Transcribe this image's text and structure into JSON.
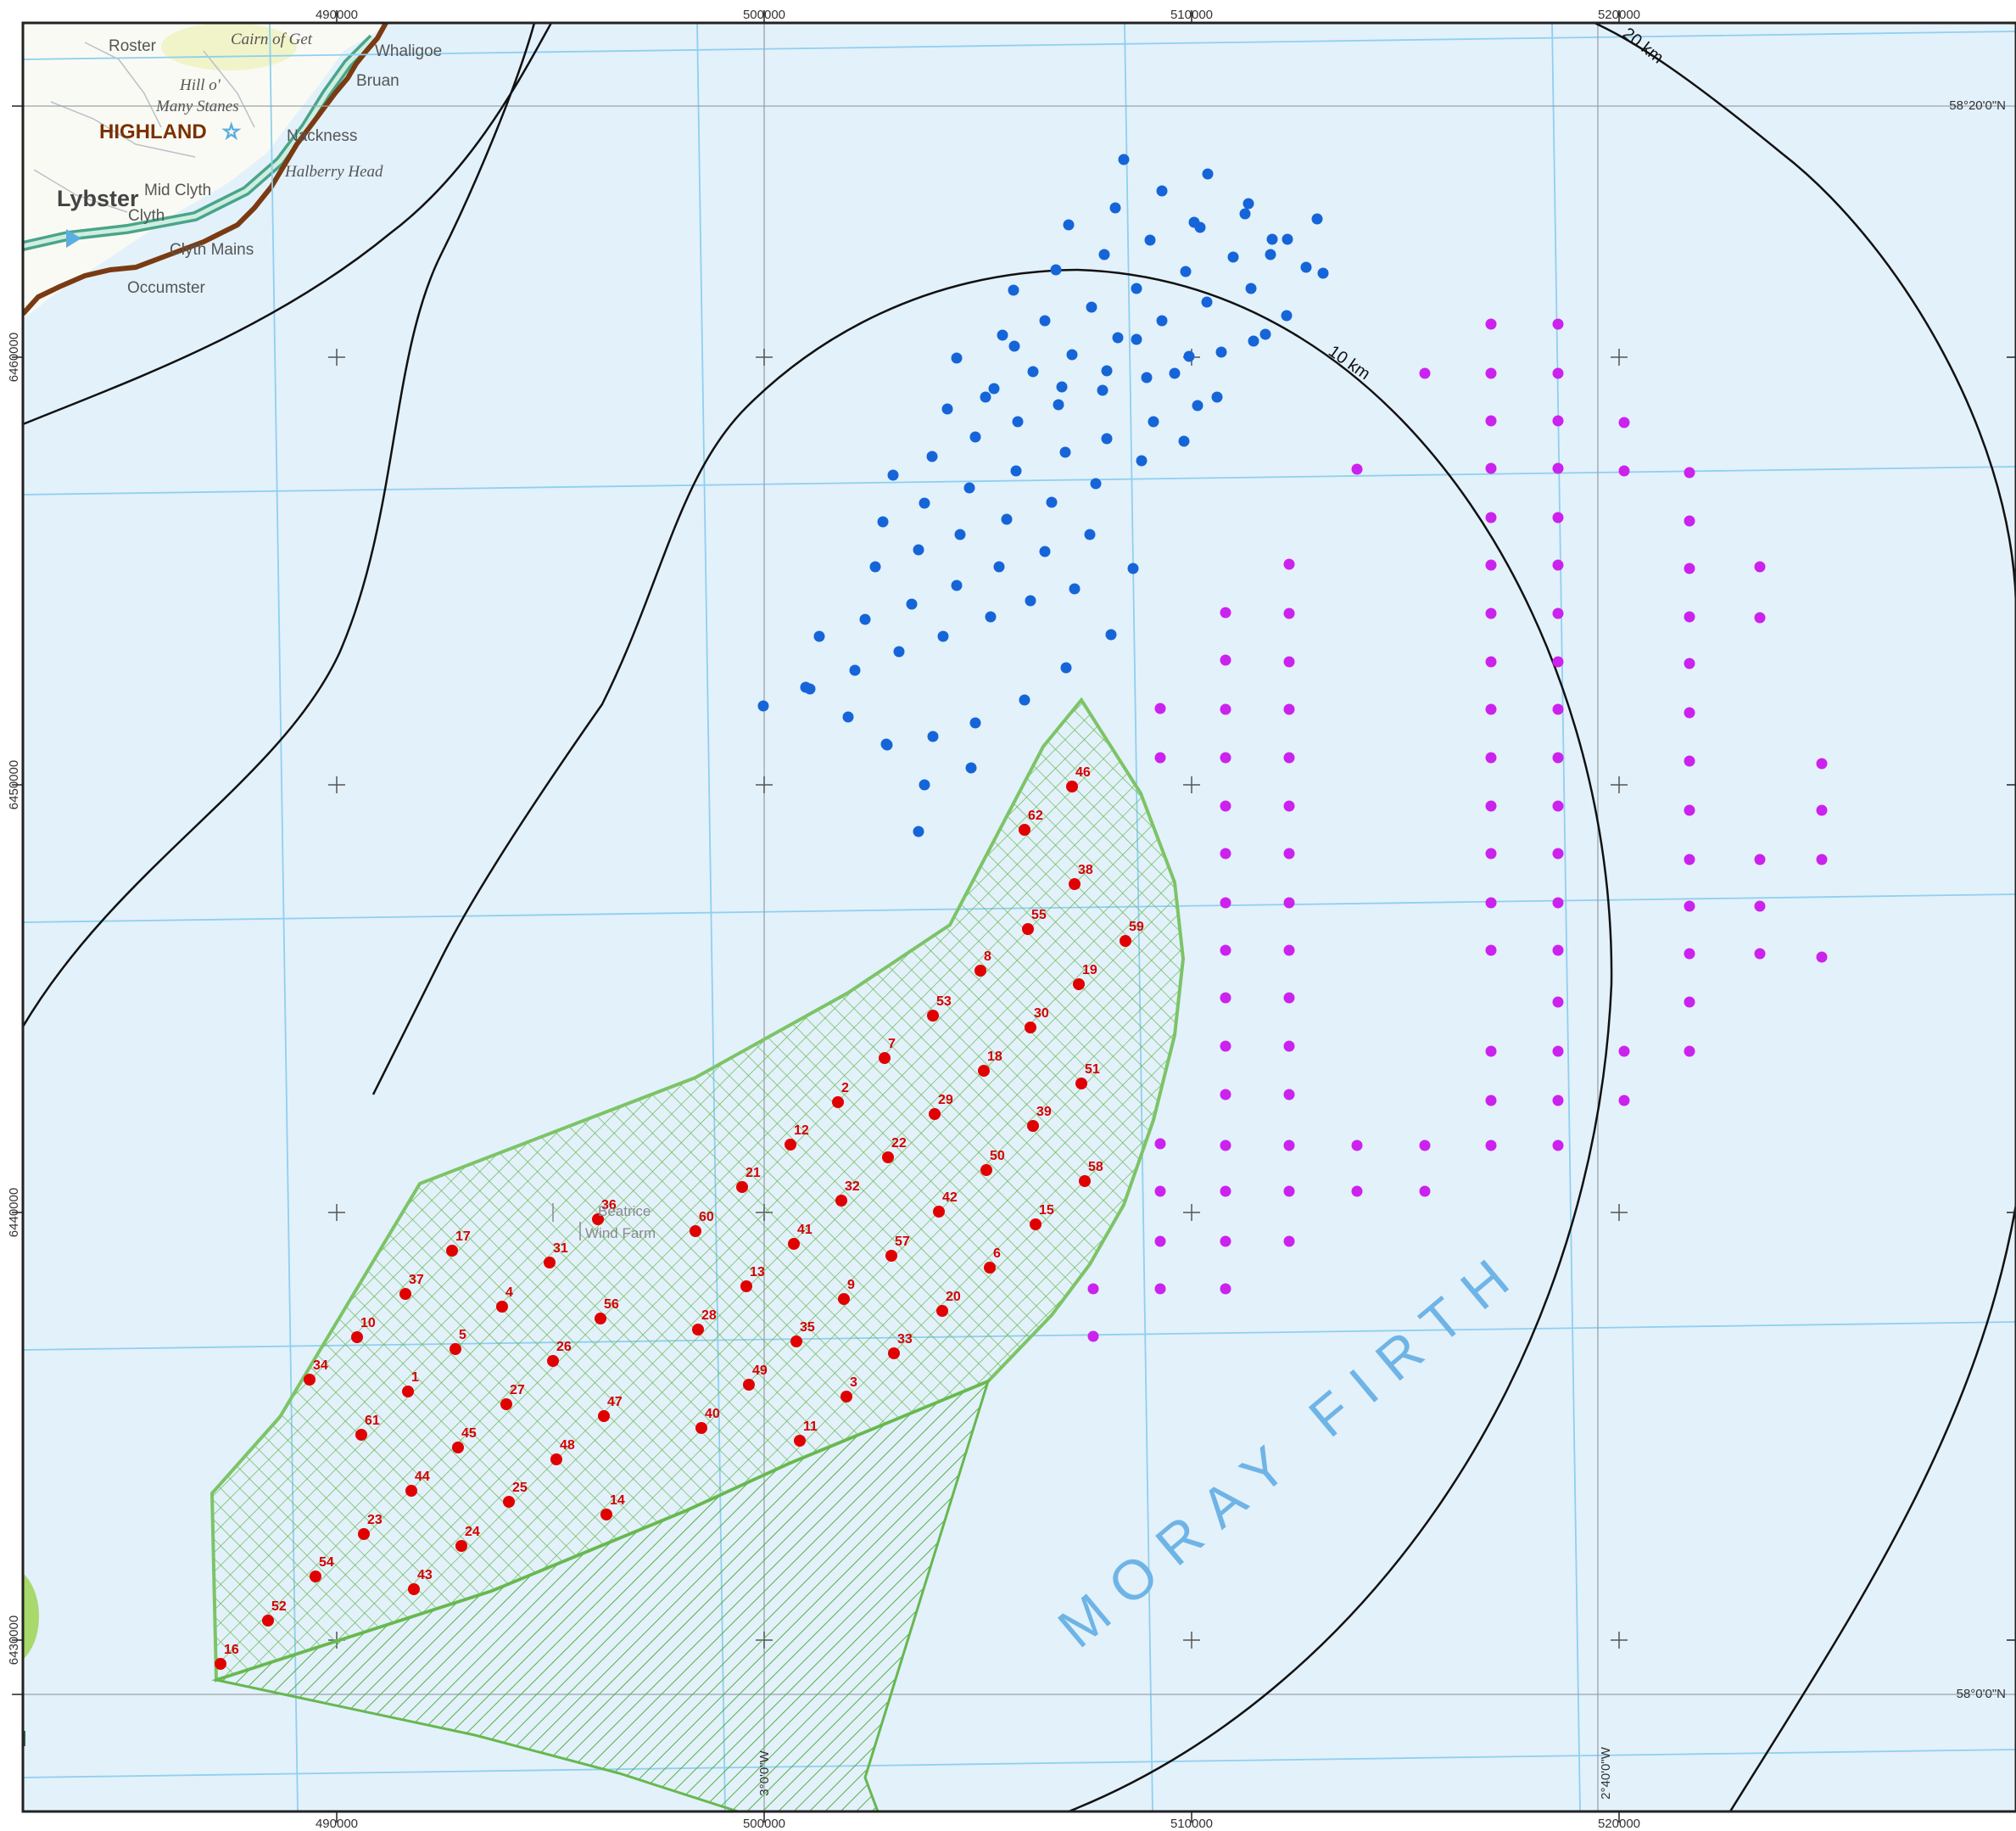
{
  "map": {
    "sea_label": "MORAY FIRTH",
    "region_label": "HIGHLAND",
    "wind_farm_label": [
      "Beatrice",
      "Wind Farm"
    ],
    "places": [
      {
        "name": "Roster",
        "style": "place"
      },
      {
        "name": "Cairn of Get",
        "style": "place-it"
      },
      {
        "name": "Whaligoe",
        "style": "place"
      },
      {
        "name": "Bruan",
        "style": "place"
      },
      {
        "name": "Hill o'",
        "style": "place-it"
      },
      {
        "name": "Many Stanes",
        "style": "place-it"
      },
      {
        "name": "Lybster",
        "style": "town"
      },
      {
        "name": "Mid Clyth",
        "style": "place"
      },
      {
        "name": "Clyth",
        "style": "place"
      },
      {
        "name": "Clyth Mains",
        "style": "place"
      },
      {
        "name": "Occumster",
        "style": "place"
      },
      {
        "name": "Halberry Head",
        "style": "place-it"
      },
      {
        "name": "Nackness",
        "style": "place"
      }
    ],
    "range_rings": [
      {
        "label": "10 km"
      },
      {
        "label": "20 km"
      }
    ],
    "easting_ticks_top": [
      "490000",
      "500000",
      "510000",
      "520000"
    ],
    "easting_ticks_bottom": [
      "490000",
      "500000",
      "510000",
      "520000"
    ],
    "northing_ticks": [
      "6460000",
      "6450000",
      "6440000",
      "6430000"
    ],
    "latitudes": [
      "58°20'0\"N",
      "58°0'0\"N"
    ],
    "longitudes": [
      "3°0'0\"W",
      "2°40'0\"W"
    ],
    "colors": {
      "sea": "#e3f1fb",
      "land": "#ffffff",
      "graticule": "#8fd0ee",
      "development_area": "#7cc466",
      "development_hatch": "#5cb84a",
      "turbine_red": "#e00000",
      "turbine_blue": "#1565d8",
      "turbine_magenta": "#cc22ee",
      "coast_boundary": "#7a3b12",
      "road": "#4aa58a"
    },
    "turbines": [
      {
        "id": "46"
      },
      {
        "id": "62"
      },
      {
        "id": "38"
      },
      {
        "id": "55"
      },
      {
        "id": "59"
      },
      {
        "id": "8"
      },
      {
        "id": "19"
      },
      {
        "id": "53"
      },
      {
        "id": "30"
      },
      {
        "id": "7"
      },
      {
        "id": "18"
      },
      {
        "id": "51"
      },
      {
        "id": "2"
      },
      {
        "id": "29"
      },
      {
        "id": "39"
      },
      {
        "id": "12"
      },
      {
        "id": "22"
      },
      {
        "id": "50"
      },
      {
        "id": "58"
      },
      {
        "id": "21"
      },
      {
        "id": "32"
      },
      {
        "id": "42"
      },
      {
        "id": "15"
      },
      {
        "id": "36"
      },
      {
        "id": "60"
      },
      {
        "id": "41"
      },
      {
        "id": "57"
      },
      {
        "id": "6"
      },
      {
        "id": "17"
      },
      {
        "id": "31"
      },
      {
        "id": "13"
      },
      {
        "id": "9"
      },
      {
        "id": "20"
      },
      {
        "id": "37"
      },
      {
        "id": "4"
      },
      {
        "id": "56"
      },
      {
        "id": "28"
      },
      {
        "id": "35"
      },
      {
        "id": "10"
      },
      {
        "id": "5"
      },
      {
        "id": "26"
      },
      {
        "id": "33"
      },
      {
        "id": "34"
      },
      {
        "id": "1"
      },
      {
        "id": "27"
      },
      {
        "id": "49"
      },
      {
        "id": "3"
      },
      {
        "id": "61"
      },
      {
        "id": "45"
      },
      {
        "id": "47"
      },
      {
        "id": "40"
      },
      {
        "id": "11"
      },
      {
        "id": "48"
      },
      {
        "id": "44"
      },
      {
        "id": "25"
      },
      {
        "id": "14"
      },
      {
        "id": "23"
      },
      {
        "id": "24"
      },
      {
        "id": "54"
      },
      {
        "id": "43"
      },
      {
        "id": "52"
      },
      {
        "id": "16"
      }
    ]
  }
}
